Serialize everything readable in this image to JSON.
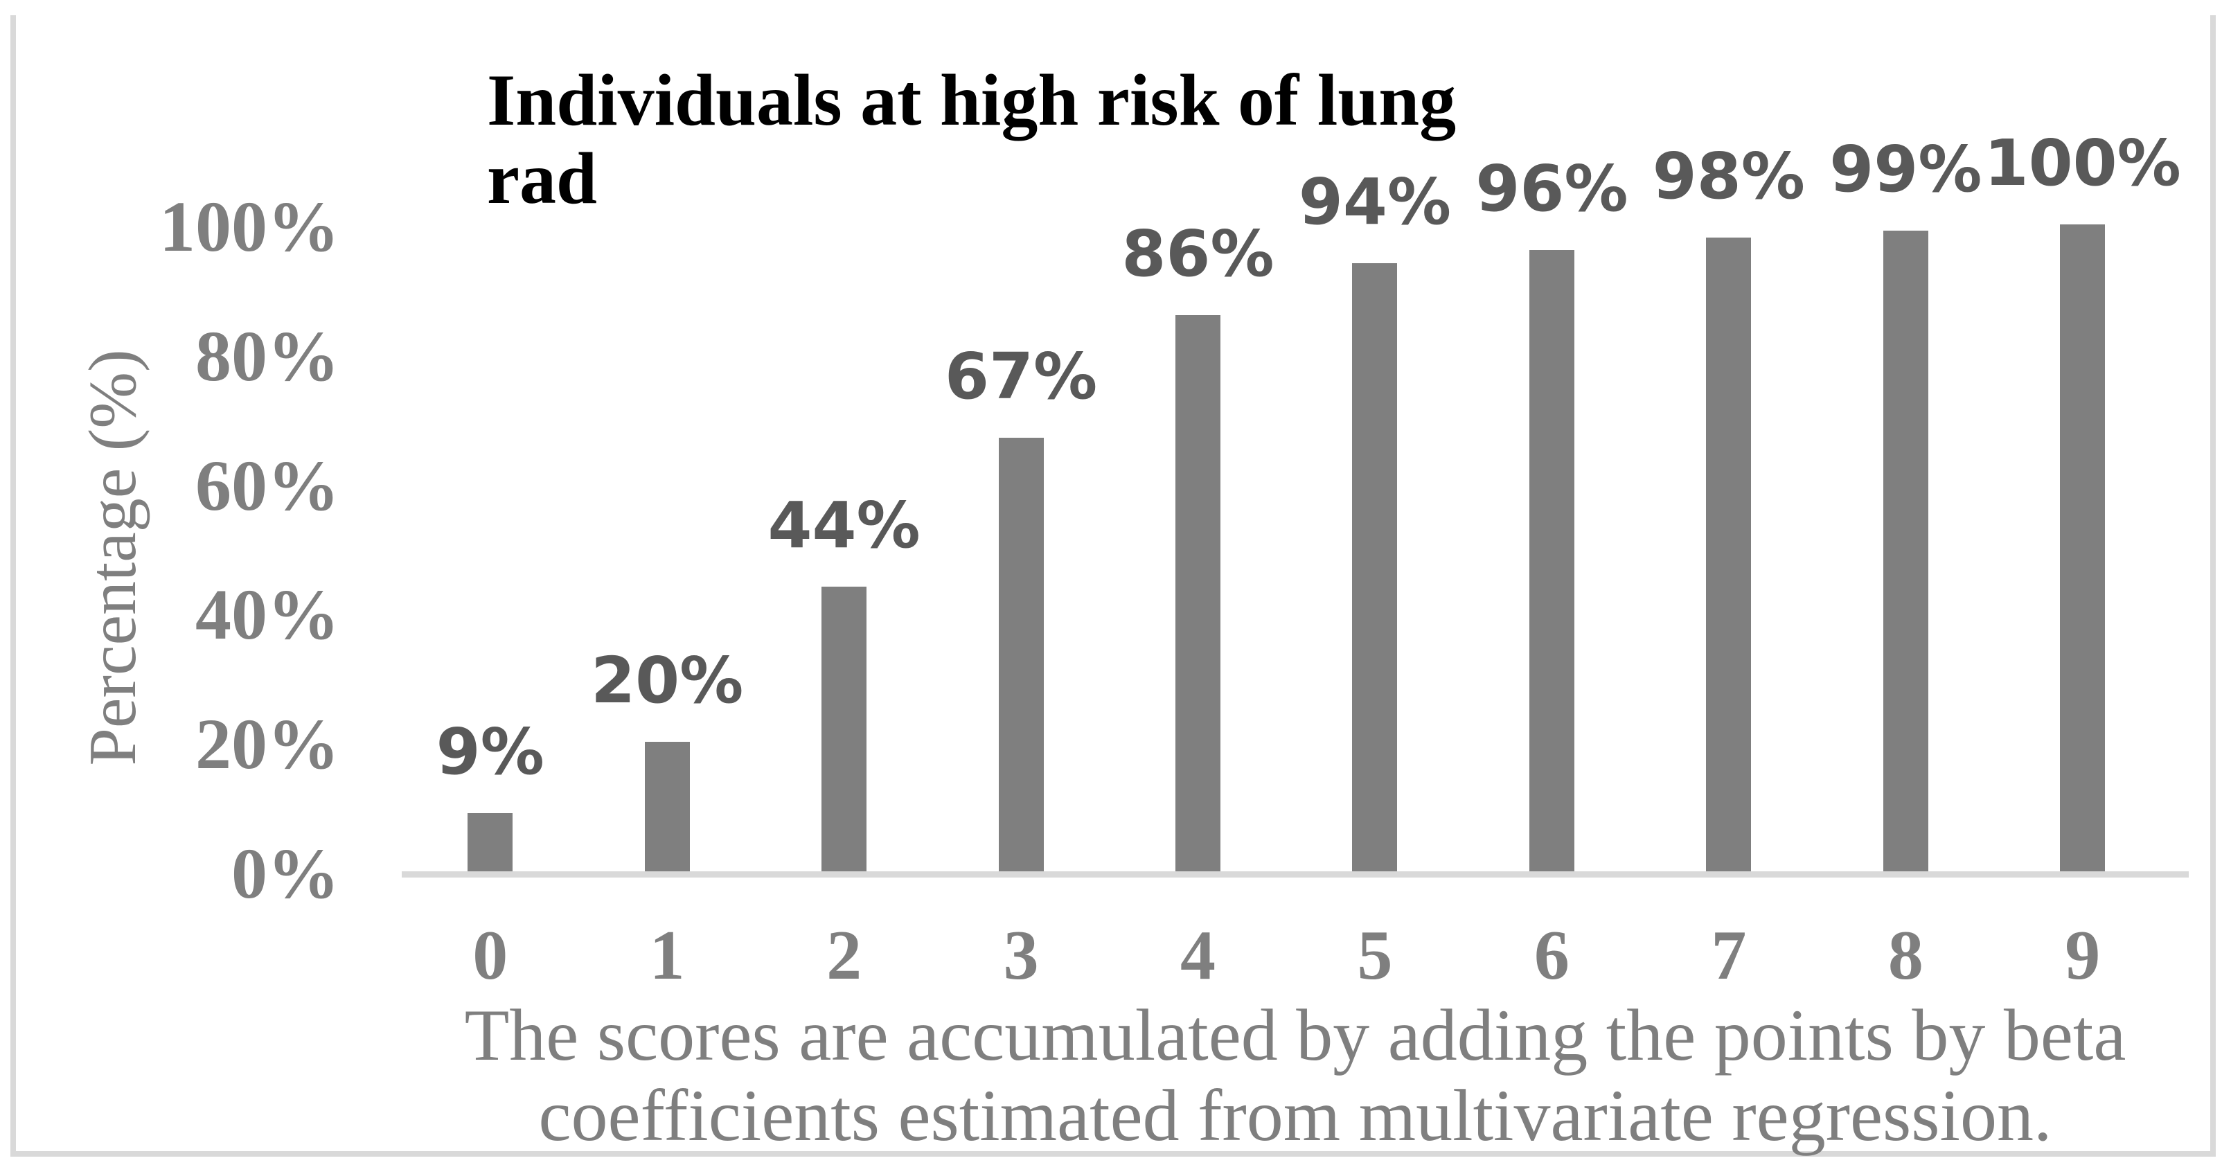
{
  "chart_data": {
    "type": "bar",
    "title_line1": "Individuals at high risk of lung",
    "title_line2": "rad",
    "ylabel": "Percentage (%)",
    "categories": [
      "0",
      "1",
      "2",
      "3",
      "4",
      "5",
      "6",
      "7",
      "8",
      "9"
    ],
    "values": [
      9,
      20,
      44,
      67,
      86,
      94,
      96,
      98,
      99,
      100
    ],
    "data_labels": [
      "9%",
      "20%",
      "44%",
      "67%",
      "86%",
      "94%",
      "96%",
      "98%",
      "99%",
      "100%"
    ],
    "yticks": [
      {
        "label": "0%",
        "value": 0
      },
      {
        "label": "20%",
        "value": 20
      },
      {
        "label": "40%",
        "value": 40
      },
      {
        "label": "60%",
        "value": 60
      },
      {
        "label": "80%",
        "value": 80
      },
      {
        "label": "100%",
        "value": 100
      }
    ],
    "ylim": [
      0,
      100
    ],
    "xlabel": "",
    "caption_line1": "The scores are accumulated by adding the points by beta",
    "caption_line2": "coefficients estimated from multivariate regression.",
    "grid": "off",
    "legend": "none",
    "colors": {
      "bar": "#7f7f7f",
      "data_label": "#595959",
      "tick_label": "#7f7f7f",
      "caption": "#7f7f7f",
      "title": "#000000",
      "axis_line": "#d9d9d9",
      "border": "#d9d9d9",
      "background": "#ffffff"
    }
  }
}
